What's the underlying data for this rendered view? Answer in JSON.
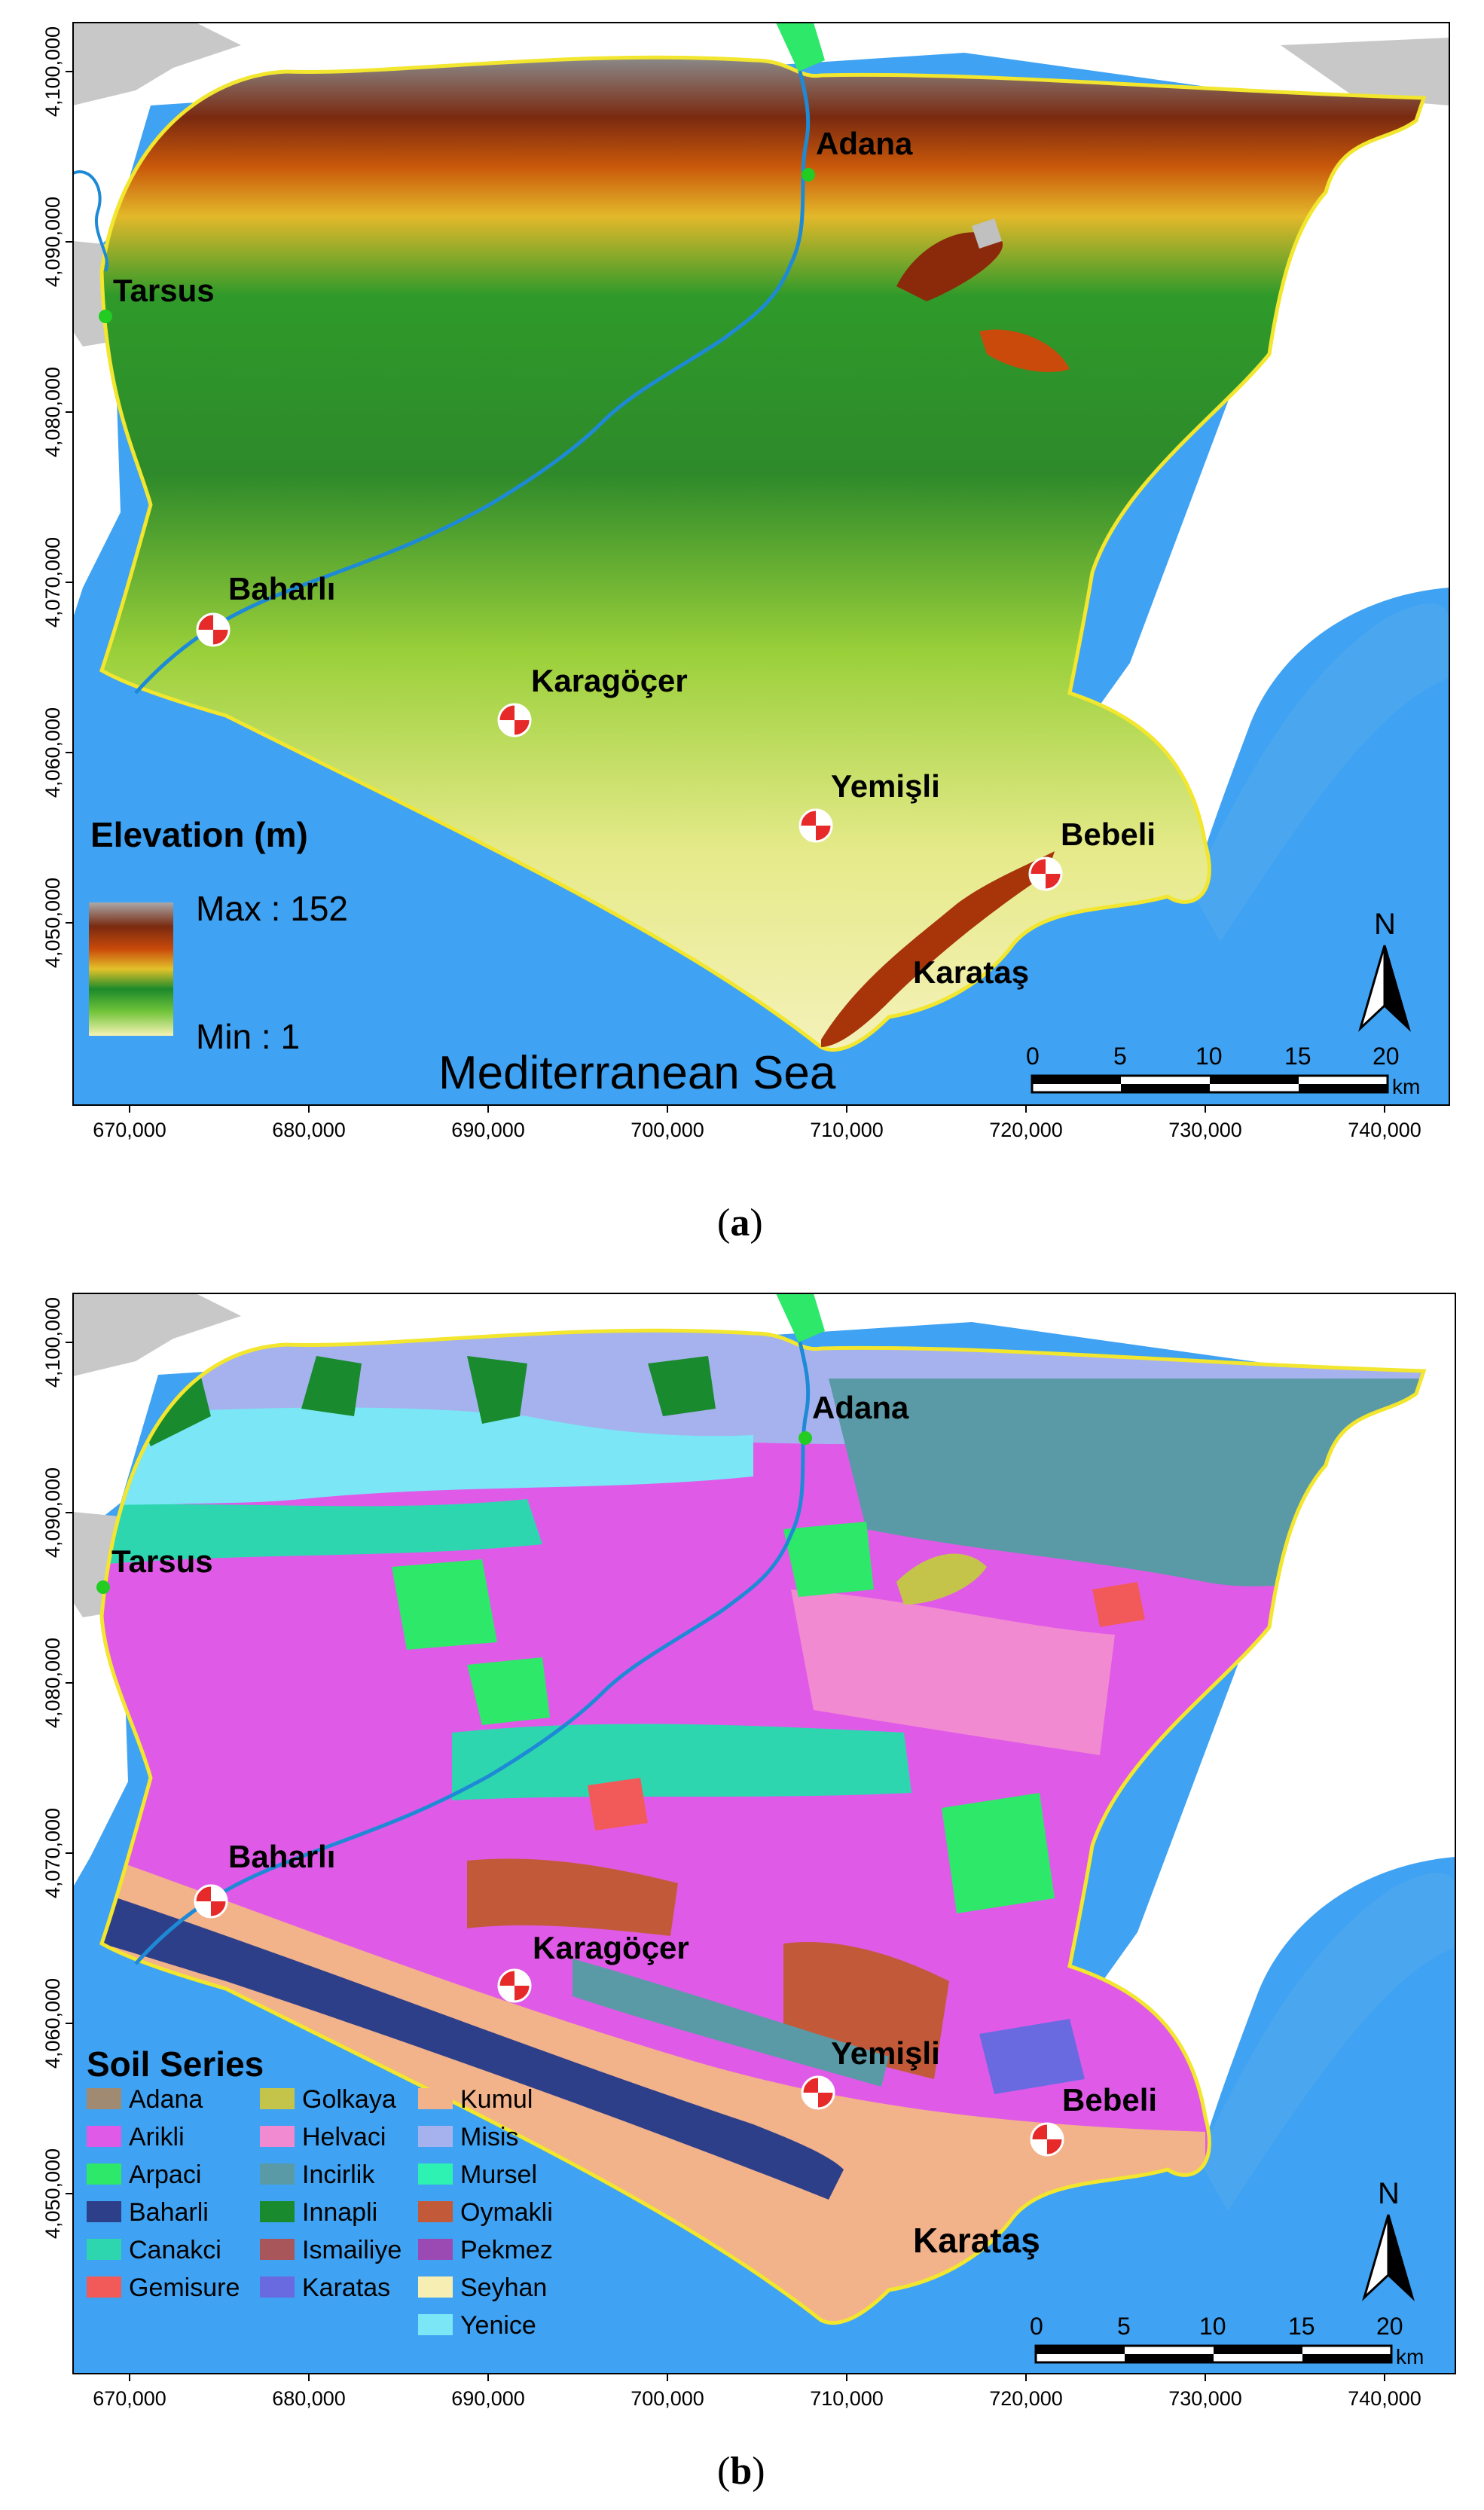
{
  "panel_a": {
    "caption_open": "(",
    "caption_letter": "a",
    "caption_close": ")",
    "legend_title": "Elevation (m)",
    "legend_max": "Max : 152",
    "legend_min": "Min : 1",
    "sea_label": "Mediterranean Sea",
    "x_ticks": [
      "670,000",
      "680,000",
      "690,000",
      "700,000",
      "710,000",
      "720,000",
      "730,000",
      "740,000"
    ],
    "y_ticks": [
      "4,100,000",
      "4,090,000",
      "4,080,000",
      "4,070,000",
      "4,060,000",
      "4,050,000"
    ]
  },
  "panel_b": {
    "caption_open": "(",
    "caption_letter": "b",
    "caption_close": ")",
    "legend_title": "Soil Series",
    "x_ticks": [
      "670,000",
      "680,000",
      "690,000",
      "700,000",
      "710,000",
      "720,000",
      "730,000",
      "740,000"
    ],
    "y_ticks": [
      "4,100,000",
      "4,090,000",
      "4,080,000",
      "4,070,000",
      "4,060,000",
      "4,050,000"
    ],
    "soil_series": [
      {
        "name": "Adana",
        "color": "#a08a72"
      },
      {
        "name": "Arikli",
        "color": "#e05ae8"
      },
      {
        "name": "Arpaci",
        "color": "#2ee86a"
      },
      {
        "name": "Baharli",
        "color": "#2e3f8a"
      },
      {
        "name": "Canakci",
        "color": "#2ed6b0"
      },
      {
        "name": "Gemisure",
        "color": "#f25a5a"
      },
      {
        "name": "Golkaya",
        "color": "#c4c44a"
      },
      {
        "name": "Helvaci",
        "color": "#f28ad2"
      },
      {
        "name": "Incirlik",
        "color": "#5a9aa6"
      },
      {
        "name": "Innapli",
        "color": "#1a8a2e"
      },
      {
        "name": "Ismailiye",
        "color": "#a8565a"
      },
      {
        "name": "Karatas",
        "color": "#6a6ae0"
      },
      {
        "name": "Kumul",
        "color": "#f2b28a"
      },
      {
        "name": "Misis",
        "color": "#a6b2ee"
      },
      {
        "name": "Mursel",
        "color": "#2ef2b2"
      },
      {
        "name": "Oymakli",
        "color": "#c25a3a"
      },
      {
        "name": "Pekmez",
        "color": "#9a4ab2"
      },
      {
        "name": "Seyhan",
        "color": "#f6eeb2"
      },
      {
        "name": "Yenice",
        "color": "#7ae6f6"
      }
    ]
  },
  "places": {
    "adana": "Adana",
    "tarsus": "Tarsus",
    "baharli": "Baharlı",
    "karagocer": "Karagöçer",
    "yemisli": "Yemişli",
    "bebeli": "Bebeli",
    "karatas": "Karataş"
  },
  "scale_bar": {
    "ticks": [
      "0",
      "5",
      "10",
      "15",
      "20"
    ],
    "unit": "km"
  },
  "north_arrow": {
    "label": "N",
    "icon": "north-arrow-icon"
  },
  "colors": {
    "sea": "#3fa2f2",
    "lake": "#4aa6ef",
    "river": "#1e8ad6",
    "boundary": "#f2e62e",
    "urban": "#c8c8c8",
    "site_marker": "#e62a2a",
    "town_marker": "#22cc22"
  }
}
